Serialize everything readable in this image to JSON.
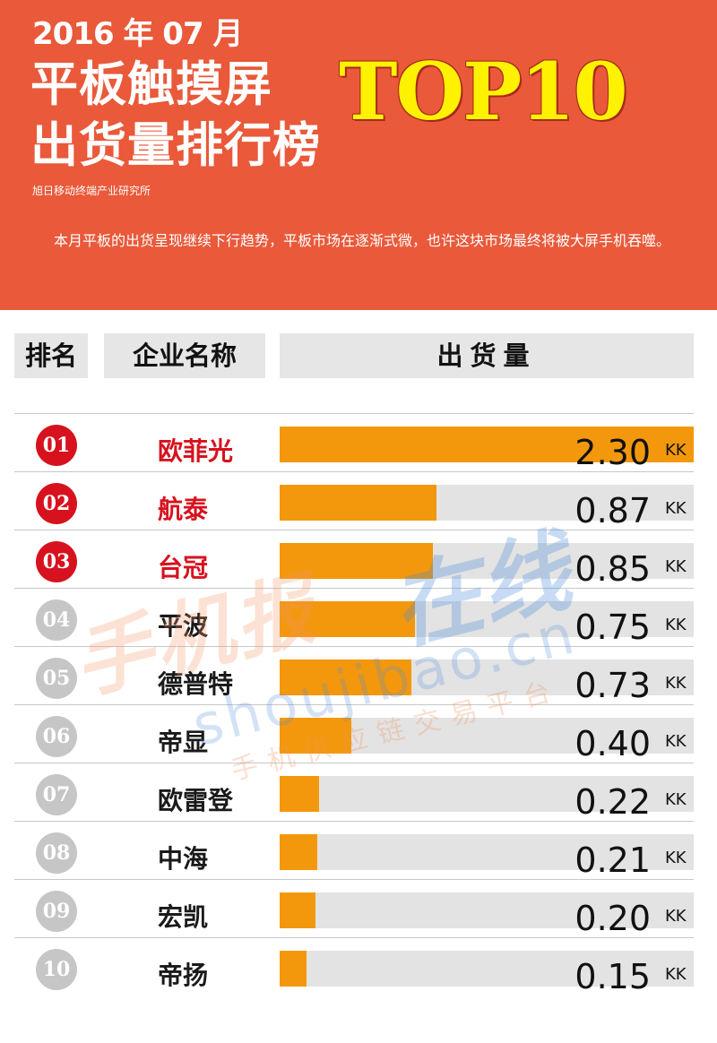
{
  "header": {
    "date": "2016 年 07 月",
    "title_line1": "平板触摸屏",
    "title_line2": "出货量排行榜",
    "badge": "TOP10",
    "source": "旭日移动终端产业研究所",
    "description": "本月平板的出货呈现继续下行趋势，平板市场在逐渐式微，也许这块市场最终将被大屏手机吞噬。"
  },
  "colors": {
    "header_bg": "#e9593a",
    "bar": "#f3980d",
    "top3": "#d7121e",
    "title_highlight": "#fff200"
  },
  "watermark": {
    "cn_part1": "手机报",
    "cn_part2": "在线",
    "domain": "shoujibao.cn",
    "subtitle": "手机供应链交易平台"
  },
  "chart_data": {
    "type": "bar",
    "orientation": "horizontal",
    "columns": [
      "排名",
      "企业名称",
      "出货量"
    ],
    "unit": "KK",
    "xlim": [
      0,
      2.3
    ],
    "ranks": [
      "01",
      "02",
      "03",
      "04",
      "05",
      "06",
      "07",
      "08",
      "09",
      "10"
    ],
    "categories": [
      "欧菲光",
      "航泰",
      "台冠",
      "平波",
      "德普特",
      "帝显",
      "欧雷登",
      "中海",
      "宏凯",
      "帝扬"
    ],
    "values": [
      2.3,
      0.87,
      0.85,
      0.75,
      0.73,
      0.4,
      0.22,
      0.21,
      0.2,
      0.15
    ],
    "value_labels": [
      "2.30",
      "0.87",
      "0.85",
      "0.75",
      "0.73",
      "0.40",
      "0.22",
      "0.21",
      "0.20",
      "0.15"
    ]
  }
}
